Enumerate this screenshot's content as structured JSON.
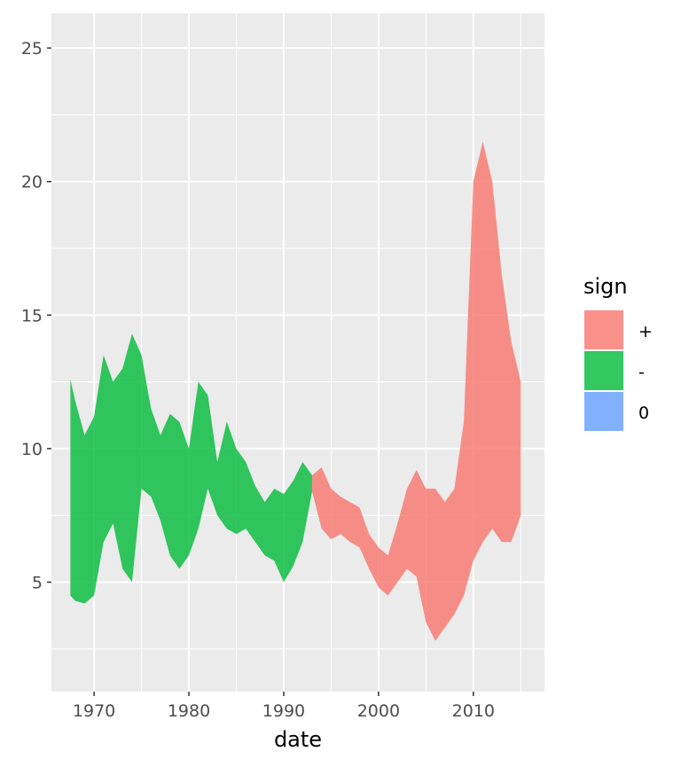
{
  "chart_data": {
    "type": "area",
    "title": "",
    "xlabel": "date",
    "ylabel": "",
    "xlim": [
      1965.5,
      2017.5
    ],
    "ylim": [
      0.9,
      26.3
    ],
    "x_ticks": [
      1970,
      1980,
      1990,
      2000,
      2010
    ],
    "x_tick_labels": [
      "1970",
      "1980",
      "1990",
      "2000",
      "2010"
    ],
    "y_ticks": [
      5,
      10,
      15,
      20,
      25
    ],
    "y_tick_labels": [
      "5",
      "10",
      "15",
      "20",
      "25"
    ],
    "grid": true,
    "legend": {
      "title": "sign",
      "position": "right",
      "entries": [
        {
          "label": "+",
          "color": "#F8766D"
        },
        {
          "label": "-",
          "color": "#00BA38"
        },
        {
          "label": "0",
          "color": "#619CFF"
        }
      ]
    },
    "series": [
      {
        "name": "-",
        "color": "#00BA38",
        "x": [
          1967.5,
          1968,
          1969,
          1970,
          1971,
          1972,
          1973,
          1974,
          1975,
          1976,
          1977,
          1978,
          1979,
          1980,
          1981,
          1982,
          1983,
          1984,
          1985,
          1986,
          1987,
          1988,
          1989,
          1990,
          1991,
          1992,
          1993
        ],
        "upper": [
          12.6,
          11.8,
          10.5,
          11.2,
          13.5,
          12.5,
          13.0,
          14.3,
          13.5,
          11.5,
          10.5,
          11.3,
          11.0,
          10.0,
          12.5,
          12.0,
          9.5,
          11.0,
          10.0,
          9.5,
          8.6,
          8.0,
          8.5,
          8.3,
          8.8,
          9.5,
          9.0
        ],
        "lower": [
          4.5,
          4.3,
          4.2,
          4.5,
          6.5,
          7.2,
          5.5,
          5.0,
          8.5,
          8.2,
          7.3,
          6.0,
          5.5,
          6.0,
          7.0,
          8.5,
          7.5,
          7.0,
          6.8,
          7.0,
          6.5,
          6.0,
          5.8,
          5.0,
          5.6,
          6.5,
          8.4
        ]
      },
      {
        "name": "+",
        "color": "#F8766D",
        "x": [
          1993,
          1994,
          1995,
          1996,
          1997,
          1998,
          1999,
          2000,
          2001,
          2002,
          2003,
          2004,
          2005,
          2006,
          2007,
          2008,
          2009,
          2010,
          2011,
          2012,
          2013,
          2014,
          2015
        ],
        "upper": [
          9.0,
          9.3,
          8.5,
          8.2,
          8.0,
          7.8,
          6.8,
          6.3,
          6.0,
          7.2,
          8.5,
          9.2,
          8.5,
          8.5,
          8.0,
          8.5,
          11.0,
          20.0,
          21.5,
          20.0,
          16.5,
          14.0,
          12.5
        ],
        "lower": [
          8.4,
          7.0,
          6.6,
          6.8,
          6.5,
          6.3,
          5.5,
          4.8,
          4.5,
          5.0,
          5.5,
          5.2,
          3.5,
          2.8,
          3.3,
          3.8,
          4.5,
          5.8,
          6.5,
          7.0,
          6.5,
          6.5,
          7.5
        ]
      }
    ]
  }
}
